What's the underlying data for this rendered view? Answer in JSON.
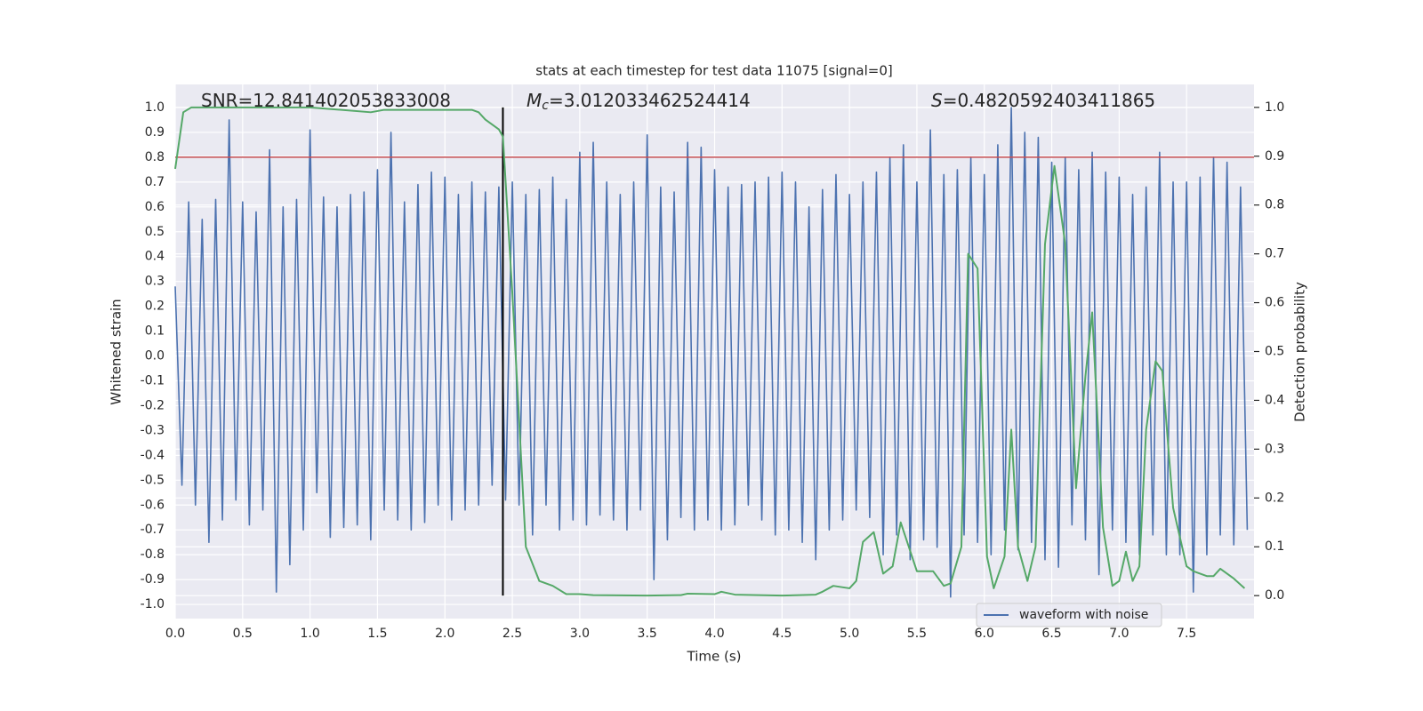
{
  "chart_data": {
    "type": "line",
    "title": "stats at each timestep for test data 11075 [signal=0]",
    "xlabel": "Time (s)",
    "ylabel": "Whitened strain",
    "y2label": "Detection probability",
    "annotations": [
      {
        "text": "SNR=12.841402053833008"
      },
      {
        "symbol": "M",
        "subscript": "c",
        "text": "=3.012033462524414"
      },
      {
        "symbol": "S",
        "text": "=0.4820592403411865"
      }
    ],
    "xlim": [
      0,
      8
    ],
    "ylim": [
      -1.057,
      1.093
    ],
    "y2lim": [
      -0.047,
      1.047
    ],
    "xticks": [
      {
        "value": 0,
        "label": "0.0"
      },
      {
        "value": 0.5,
        "label": "0.5"
      },
      {
        "value": 1,
        "label": "1.0"
      },
      {
        "value": 1.5,
        "label": "1.5"
      },
      {
        "value": 2,
        "label": "2.0"
      },
      {
        "value": 2.5,
        "label": "2.5"
      },
      {
        "value": 3,
        "label": "3.0"
      },
      {
        "value": 3.5,
        "label": "3.5"
      },
      {
        "value": 4,
        "label": "4.0"
      },
      {
        "value": 4.5,
        "label": "4.5"
      },
      {
        "value": 5,
        "label": "5.0"
      },
      {
        "value": 5.5,
        "label": "5.5"
      },
      {
        "value": 6,
        "label": "6.0"
      },
      {
        "value": 6.5,
        "label": "6.5"
      },
      {
        "value": 7,
        "label": "7.0"
      },
      {
        "value": 7.5,
        "label": "7.5"
      }
    ],
    "yticks": [
      {
        "value": -1,
        "label": "-1.0"
      },
      {
        "value": -0.9,
        "label": "-0.9"
      },
      {
        "value": -0.8,
        "label": "-0.8"
      },
      {
        "value": -0.7,
        "label": "-0.7"
      },
      {
        "value": -0.6,
        "label": "-0.6"
      },
      {
        "value": -0.5,
        "label": "-0.5"
      },
      {
        "value": -0.4,
        "label": "-0.4"
      },
      {
        "value": -0.3,
        "label": "-0.3"
      },
      {
        "value": -0.2,
        "label": "-0.2"
      },
      {
        "value": -0.1,
        "label": "-0.1"
      },
      {
        "value": 0,
        "label": "0.0"
      },
      {
        "value": 0.1,
        "label": "0.1"
      },
      {
        "value": 0.2,
        "label": "0.2"
      },
      {
        "value": 0.3,
        "label": "0.3"
      },
      {
        "value": 0.4,
        "label": "0.4"
      },
      {
        "value": 0.5,
        "label": "0.5"
      },
      {
        "value": 0.6,
        "label": "0.6"
      },
      {
        "value": 0.7,
        "label": "0.7"
      },
      {
        "value": 0.8,
        "label": "0.8"
      },
      {
        "value": 0.9,
        "label": "0.9"
      },
      {
        "value": 1,
        "label": "1.0"
      }
    ],
    "y2ticks": [
      {
        "value": 0,
        "label": "0.0"
      },
      {
        "value": 0.1,
        "label": "0.1"
      },
      {
        "value": 0.2,
        "label": "0.2"
      },
      {
        "value": 0.3,
        "label": "0.3"
      },
      {
        "value": 0.4,
        "label": "0.4"
      },
      {
        "value": 0.5,
        "label": "0.5"
      },
      {
        "value": 0.6,
        "label": "0.6"
      },
      {
        "value": 0.7,
        "label": "0.7"
      },
      {
        "value": 0.8,
        "label": "0.8"
      },
      {
        "value": 0.9,
        "label": "0.9"
      },
      {
        "value": 1,
        "label": "1.0"
      }
    ],
    "grid": true,
    "legend": "lower right",
    "hline": 0.8,
    "hline_color": "#c44e52",
    "vline": 2.43,
    "vline_color": "#000000",
    "series": [
      {
        "name": "waveform with noise",
        "color": "#4c72b0",
        "axis": "y",
        "x": [
          0,
          0.05,
          0.1,
          0.15,
          0.2,
          0.25,
          0.3,
          0.35,
          0.4,
          0.45,
          0.5,
          0.55,
          0.6,
          0.65,
          0.7,
          0.75,
          0.8,
          0.85,
          0.9,
          0.95,
          1,
          1.05,
          1.1,
          1.15,
          1.2,
          1.25,
          1.3,
          1.35,
          1.4,
          1.45,
          1.5,
          1.55,
          1.6,
          1.65,
          1.7,
          1.75,
          1.8,
          1.85,
          1.9,
          1.95,
          2,
          2.05,
          2.1,
          2.15,
          2.2,
          2.25,
          2.3,
          2.35,
          2.4,
          2.45,
          2.5,
          2.55,
          2.6,
          2.65,
          2.7,
          2.75,
          2.8,
          2.85,
          2.9,
          2.95,
          3,
          3.05,
          3.1,
          3.15,
          3.2,
          3.25,
          3.3,
          3.35,
          3.4,
          3.45,
          3.5,
          3.55,
          3.6,
          3.65,
          3.7,
          3.75,
          3.8,
          3.85,
          3.9,
          3.95,
          4,
          4.05,
          4.1,
          4.15,
          4.2,
          4.25,
          4.3,
          4.35,
          4.4,
          4.45,
          4.5,
          4.55,
          4.6,
          4.65,
          4.7,
          4.75,
          4.8,
          4.85,
          4.9,
          4.95,
          5,
          5.05,
          5.1,
          5.15,
          5.2,
          5.25,
          5.3,
          5.35,
          5.4,
          5.45,
          5.5,
          5.55,
          5.6,
          5.65,
          5.7,
          5.75,
          5.8,
          5.85,
          5.9,
          5.95,
          6,
          6.05,
          6.1,
          6.15,
          6.2,
          6.25,
          6.3,
          6.35,
          6.4,
          6.45,
          6.5,
          6.55,
          6.6,
          6.65,
          6.7,
          6.75,
          6.8,
          6.85,
          6.9,
          6.95,
          7,
          7.05,
          7.1,
          7.15,
          7.2,
          7.25,
          7.3,
          7.35,
          7.4,
          7.45,
          7.5,
          7.55,
          7.6,
          7.65,
          7.7,
          7.75,
          7.8,
          7.85,
          7.9,
          7.95
        ],
        "values": [
          0.28,
          -0.52,
          0.62,
          -0.6,
          0.55,
          -0.75,
          0.63,
          -0.66,
          0.95,
          -0.58,
          0.62,
          -0.68,
          0.58,
          -0.62,
          0.83,
          -0.95,
          0.6,
          -0.84,
          0.63,
          -0.7,
          0.91,
          -0.55,
          0.64,
          -0.73,
          0.6,
          -0.69,
          0.65,
          -0.68,
          0.66,
          -0.74,
          0.75,
          -0.62,
          0.9,
          -0.66,
          0.62,
          -0.7,
          0.69,
          -0.67,
          0.74,
          -0.6,
          0.72,
          -0.66,
          0.65,
          -0.62,
          0.7,
          -0.6,
          0.66,
          -0.52,
          0.68,
          -0.58,
          0.7,
          -0.6,
          0.65,
          -0.72,
          0.67,
          -0.6,
          0.72,
          -0.7,
          0.63,
          -0.66,
          0.82,
          -0.68,
          0.86,
          -0.64,
          0.7,
          -0.66,
          0.65,
          -0.7,
          0.7,
          -0.62,
          0.89,
          -0.9,
          0.68,
          -0.74,
          0.66,
          -0.65,
          0.86,
          -0.7,
          0.84,
          -0.66,
          0.75,
          -0.7,
          0.68,
          -0.68,
          0.69,
          -0.6,
          0.7,
          -0.66,
          0.72,
          -0.72,
          0.74,
          -0.7,
          0.7,
          -0.75,
          0.6,
          -0.82,
          0.67,
          -0.7,
          0.73,
          -0.66,
          0.65,
          -0.62,
          0.7,
          -0.65,
          0.74,
          -0.8,
          0.8,
          -0.72,
          0.85,
          -0.82,
          0.7,
          -0.74,
          0.91,
          -0.77,
          0.73,
          -0.97,
          0.75,
          -0.72,
          0.8,
          -0.75,
          0.73,
          -0.8,
          0.85,
          -0.7,
          1.0,
          -0.78,
          0.9,
          -0.75,
          0.88,
          -0.82,
          0.78,
          -0.85,
          0.8,
          -0.68,
          0.75,
          -0.74,
          0.82,
          -0.88,
          0.74,
          -0.7,
          0.72,
          -0.75,
          0.65,
          -0.8,
          0.68,
          -0.72,
          0.82,
          -0.8,
          0.7,
          -0.8,
          0.7,
          -0.95,
          0.72,
          -0.8,
          0.8,
          -0.72,
          0.78,
          -0.76,
          0.68,
          -0.7
        ]
      },
      {
        "color": "#55a868",
        "axis": "y2",
        "x": [
          0,
          0.06,
          0.12,
          0.5,
          1,
          1.45,
          1.55,
          2.2,
          2.25,
          2.3,
          2.4,
          2.43,
          2.5,
          2.6,
          2.7,
          2.8,
          2.9,
          3,
          3.1,
          3.5,
          3.75,
          3.8,
          4,
          4.05,
          4.15,
          4.5,
          4.75,
          4.8,
          4.88,
          5,
          5.05,
          5.1,
          5.18,
          5.25,
          5.32,
          5.38,
          5.5,
          5.62,
          5.7,
          5.75,
          5.83,
          5.88,
          5.95,
          6.02,
          6.07,
          6.15,
          6.2,
          6.25,
          6.32,
          6.38,
          6.45,
          6.52,
          6.6,
          6.68,
          6.75,
          6.8,
          6.88,
          6.95,
          7,
          7.05,
          7.1,
          7.15,
          7.2,
          7.27,
          7.32,
          7.4,
          7.5,
          7.55,
          7.65,
          7.7,
          7.75,
          7.8,
          7.85,
          7.93
        ],
        "values": [
          0.874,
          0.99,
          1.0,
          1.0,
          1.0,
          0.99,
          0.995,
          0.995,
          0.99,
          0.975,
          0.955,
          0.94,
          0.62,
          0.1,
          0.03,
          0.02,
          0.003,
          0.003,
          0.001,
          0.0,
          0.001,
          0.004,
          0.003,
          0.008,
          0.002,
          0.0,
          0.002,
          0.008,
          0.02,
          0.015,
          0.03,
          0.11,
          0.13,
          0.045,
          0.06,
          0.15,
          0.05,
          0.05,
          0.02,
          0.025,
          0.1,
          0.7,
          0.67,
          0.08,
          0.015,
          0.08,
          0.34,
          0.1,
          0.03,
          0.1,
          0.72,
          0.88,
          0.72,
          0.22,
          0.45,
          0.58,
          0.14,
          0.02,
          0.03,
          0.09,
          0.03,
          0.06,
          0.34,
          0.48,
          0.46,
          0.18,
          0.06,
          0.05,
          0.04,
          0.04,
          0.055,
          0.045,
          0.035,
          0.015
        ]
      }
    ]
  }
}
